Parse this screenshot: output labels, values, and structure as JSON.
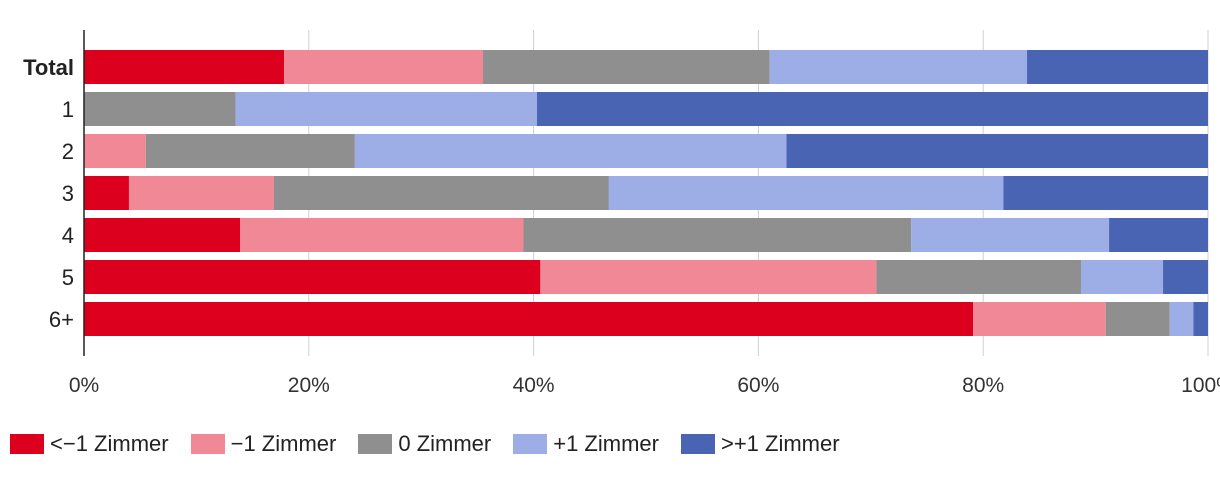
{
  "chart_data": {
    "type": "bar",
    "orientation": "horizontal",
    "stacked": true,
    "percent": true,
    "categories": [
      "Total",
      "1",
      "2",
      "3",
      "4",
      "5",
      "6+"
    ],
    "bold_categories": [
      "Total"
    ],
    "series": [
      {
        "name": "<−1 Zimmer",
        "color": "#dc001e",
        "values": [
          17.8,
          0,
          0,
          4.0,
          13.9,
          40.6,
          79.1
        ]
      },
      {
        "name": "−1 Zimmer",
        "color": "#f08995",
        "values": [
          17.7,
          0,
          5.5,
          12.9,
          25.2,
          29.9,
          11.8
        ]
      },
      {
        "name": "0 Zimmer",
        "color": "#8f8f8f",
        "values": [
          25.5,
          13.5,
          18.6,
          29.8,
          34.5,
          18.2,
          5.7
        ]
      },
      {
        "name": "+1 Zimmer",
        "color": "#9daee7",
        "values": [
          22.9,
          26.8,
          38.4,
          35.1,
          17.6,
          7.3,
          2.1
        ]
      },
      {
        "name": ">+1 Zimmer",
        "color": "#4a64b4",
        "values": [
          16.1,
          59.7,
          37.5,
          18.2,
          8.8,
          4.0,
          1.3
        ]
      }
    ],
    "xticks": [
      "0%",
      "20%",
      "40%",
      "60%",
      "80%",
      "100%"
    ],
    "xlim": [
      0,
      100
    ],
    "grid": true,
    "legend_position": "bottom-left"
  }
}
